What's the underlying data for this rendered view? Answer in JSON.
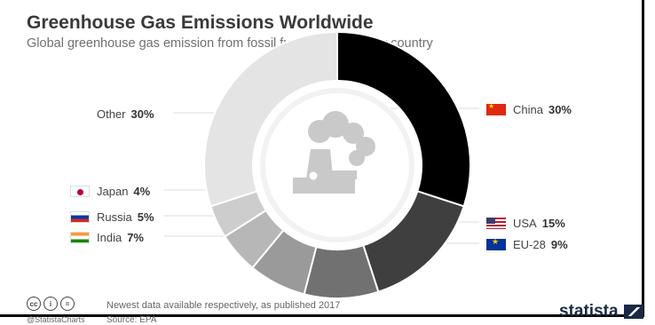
{
  "title": "Greenhouse Gas Emissions Worldwide",
  "subtitle": "Global greenhouse gas emission from fossil fuel combustion by country",
  "footer": {
    "note": "Newest data available respectively, as published 2017",
    "source": "Source: EPA",
    "handle": "@StatistaCharts",
    "brand": "statista",
    "license_icons": [
      "creative-commons-icon",
      "attribution-icon",
      "no-derivatives-icon"
    ]
  },
  "chart_data": {
    "type": "pie",
    "title": "Greenhouse Gas Emissions Worldwide",
    "subtitle": "Global greenhouse gas emission from fossil fuel combustion by country",
    "categories": [
      "China",
      "USA",
      "EU-28",
      "India",
      "Russia",
      "Japan",
      "Other"
    ],
    "values": [
      30,
      15,
      9,
      7,
      5,
      4,
      30
    ],
    "labels": [
      "China",
      "USA",
      "EU-28",
      "India",
      "Russia",
      "Japan",
      "Other"
    ],
    "pct_labels": [
      "30%",
      "15%",
      "9%",
      "7%",
      "5%",
      "4%",
      "30%"
    ],
    "colors": [
      "#000000",
      "#3f3f3f",
      "#717171",
      "#9a9a9a",
      "#b7b7b7",
      "#cdcdcd",
      "#e4e4e4"
    ],
    "flags": [
      "china-flag-icon",
      "usa-flag-icon",
      "eu-flag-icon",
      "india-flag-icon",
      "russia-flag-icon",
      "japan-flag-icon",
      ""
    ],
    "center_icon": "factory-smoke-icon",
    "legend": "labels around donut"
  }
}
